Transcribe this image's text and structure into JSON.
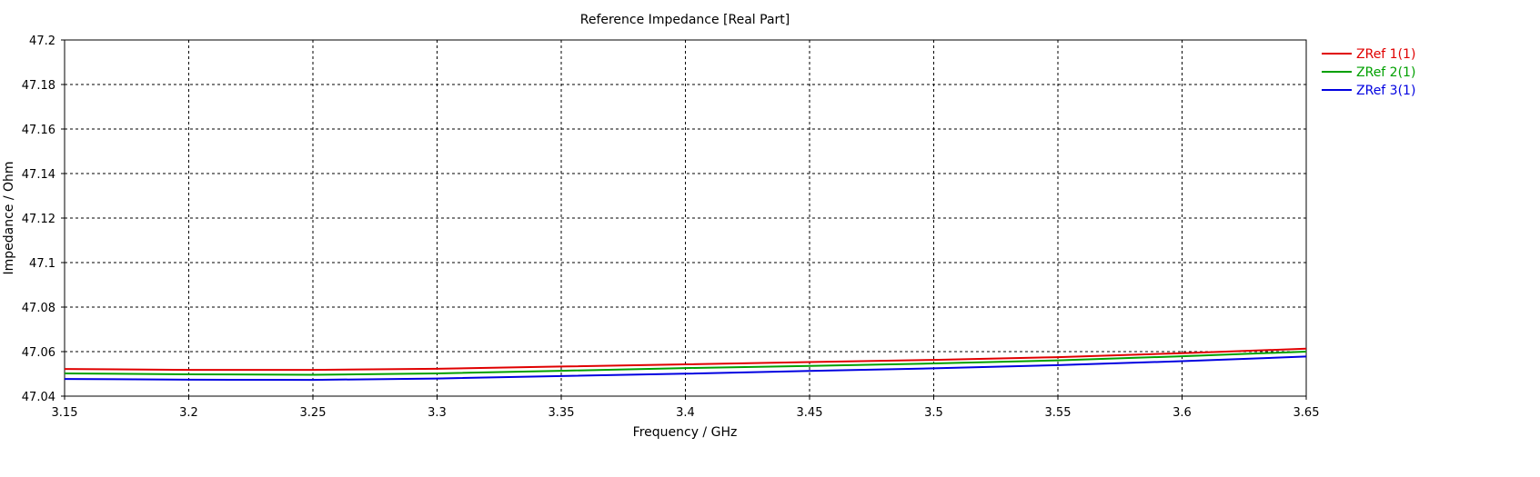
{
  "chart_data": {
    "type": "line",
    "title": "Reference Impedance [Real Part]",
    "xlabel": "Frequency / GHz",
    "ylabel": "Impedance / Ohm",
    "xlim": [
      3.15,
      3.65
    ],
    "ylim": [
      47.04,
      47.2
    ],
    "x_ticks": [
      "3.15",
      "3.2",
      "3.25",
      "3.3",
      "3.35",
      "3.4",
      "3.45",
      "3.5",
      "3.55",
      "3.6",
      "3.65"
    ],
    "y_ticks": [
      "47.04",
      "47.06",
      "47.08",
      "47.1",
      "47.12",
      "47.14",
      "47.16",
      "47.18",
      "47.2"
    ],
    "grid": true,
    "legend_position": "top-right",
    "series": [
      {
        "name": "ZRef 1(1)",
        "color": "#e00000",
        "x": [
          3.15,
          3.2,
          3.25,
          3.3,
          3.35,
          3.4,
          3.45,
          3.5,
          3.55,
          3.6,
          3.65
        ],
        "y": [
          47.0522,
          47.0518,
          47.0518,
          47.0523,
          47.0533,
          47.0543,
          47.0553,
          47.0563,
          47.0575,
          47.0593,
          47.0613
        ]
      },
      {
        "name": "ZRef 2(1)",
        "color": "#00a000",
        "x": [
          3.15,
          3.2,
          3.25,
          3.3,
          3.35,
          3.4,
          3.45,
          3.5,
          3.55,
          3.6,
          3.65
        ],
        "y": [
          47.0502,
          47.0498,
          47.0496,
          47.0502,
          47.0514,
          47.0526,
          47.0536,
          47.0547,
          47.0561,
          47.0579,
          47.06
        ]
      },
      {
        "name": "ZRef 3(1)",
        "color": "#0000e0",
        "x": [
          3.15,
          3.2,
          3.25,
          3.3,
          3.35,
          3.4,
          3.45,
          3.5,
          3.55,
          3.6,
          3.65
        ],
        "y": [
          47.0477,
          47.0474,
          47.0473,
          47.0479,
          47.049,
          47.0501,
          47.0513,
          47.0525,
          47.0539,
          47.0557,
          47.0578
        ]
      }
    ]
  }
}
